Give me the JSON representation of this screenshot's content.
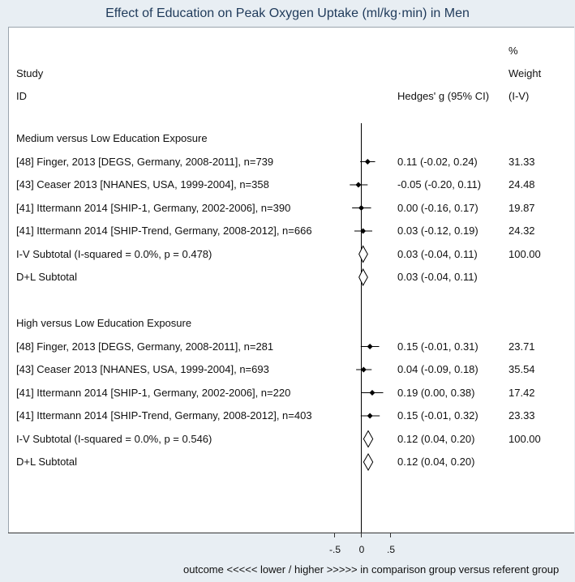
{
  "title": "Effect of Education on Peak Oxygen Uptake (ml/kg·min) in Men",
  "headers": {
    "study_line1": "Study",
    "study_line2": "ID",
    "effect": "Hedges' g (95% CI)",
    "weight_line0": "%",
    "weight_line1": "Weight",
    "weight_line2": "(I-V)"
  },
  "chart_data": {
    "type": "forest",
    "xlabel": "outcome <<<<< lower / higher >>>>> in comparison group versus referent group",
    "xticks": [
      "-.5",
      "0",
      ".5"
    ],
    "xtick_values": [
      -0.5,
      0,
      0.5
    ],
    "xlim": [
      -0.6,
      0.6
    ],
    "reference_line": 0,
    "rows": [
      {
        "kind": "header",
        "label": "Medium versus Low Education Exposure"
      },
      {
        "kind": "study",
        "label": "[48] Finger, 2013 [DEGS, Germany, 2008-2011], n=739",
        "g": 0.11,
        "lo": -0.02,
        "hi": 0.24,
        "ci_text": "0.11 (-0.02, 0.24)",
        "weight": "31.33"
      },
      {
        "kind": "study",
        "label": "[43] Ceaser 2013 [NHANES, USA, 1999-2004], n=358",
        "g": -0.05,
        "lo": -0.2,
        "hi": 0.11,
        "ci_text": "-0.05 (-0.20, 0.11)",
        "weight": "24.48"
      },
      {
        "kind": "study",
        "label": "[41] Ittermann 2014 [SHIP-1, Germany, 2002-2006], n=390",
        "g": 0.0,
        "lo": -0.16,
        "hi": 0.17,
        "ci_text": "0.00 (-0.16, 0.17)",
        "weight": "19.87"
      },
      {
        "kind": "study",
        "label": "[41] Ittermann 2014 [SHIP-Trend, Germany, 2008-2012], n=666",
        "g": 0.03,
        "lo": -0.12,
        "hi": 0.19,
        "ci_text": "0.03 (-0.12, 0.19)",
        "weight": "24.32"
      },
      {
        "kind": "subtotal",
        "label": "I-V Subtotal  (I-squared = 0.0%, p = 0.478)",
        "g": 0.03,
        "lo": -0.04,
        "hi": 0.11,
        "ci_text": "0.03 (-0.04, 0.11)",
        "weight": "100.00"
      },
      {
        "kind": "subtotal",
        "label": "D+L Subtotal",
        "g": 0.03,
        "lo": -0.04,
        "hi": 0.11,
        "ci_text": "0.03 (-0.04, 0.11)",
        "weight": ""
      },
      {
        "kind": "blank"
      },
      {
        "kind": "header",
        "label": "High versus Low Education Exposure"
      },
      {
        "kind": "study",
        "label": "[48] Finger, 2013 [DEGS, Germany, 2008-2011], n=281",
        "g": 0.15,
        "lo": -0.01,
        "hi": 0.31,
        "ci_text": "0.15 (-0.01, 0.31)",
        "weight": "23.71"
      },
      {
        "kind": "study",
        "label": "[43] Ceaser 2013 [NHANES, USA, 1999-2004], n=693",
        "g": 0.04,
        "lo": -0.09,
        "hi": 0.18,
        "ci_text": "0.04 (-0.09, 0.18)",
        "weight": "35.54"
      },
      {
        "kind": "study",
        "label": "[41] Ittermann 2014 [SHIP-1, Germany, 2002-2006], n=220",
        "g": 0.19,
        "lo": 0.0,
        "hi": 0.38,
        "ci_text": "0.19 (0.00, 0.38)",
        "weight": "17.42"
      },
      {
        "kind": "study",
        "label": "[41] Ittermann 2014 [SHIP-Trend, Germany, 2008-2012], n=403",
        "g": 0.15,
        "lo": -0.01,
        "hi": 0.32,
        "ci_text": "0.15 (-0.01, 0.32)",
        "weight": "23.33"
      },
      {
        "kind": "subtotal",
        "label": "I-V Subtotal  (I-squared = 0.0%, p = 0.546)",
        "g": 0.12,
        "lo": 0.04,
        "hi": 0.2,
        "ci_text": "0.12 (0.04, 0.20)",
        "weight": "100.00"
      },
      {
        "kind": "subtotal",
        "label": "D+L Subtotal",
        "g": 0.12,
        "lo": 0.04,
        "hi": 0.2,
        "ci_text": "0.12 (0.04, 0.20)",
        "weight": ""
      }
    ]
  }
}
